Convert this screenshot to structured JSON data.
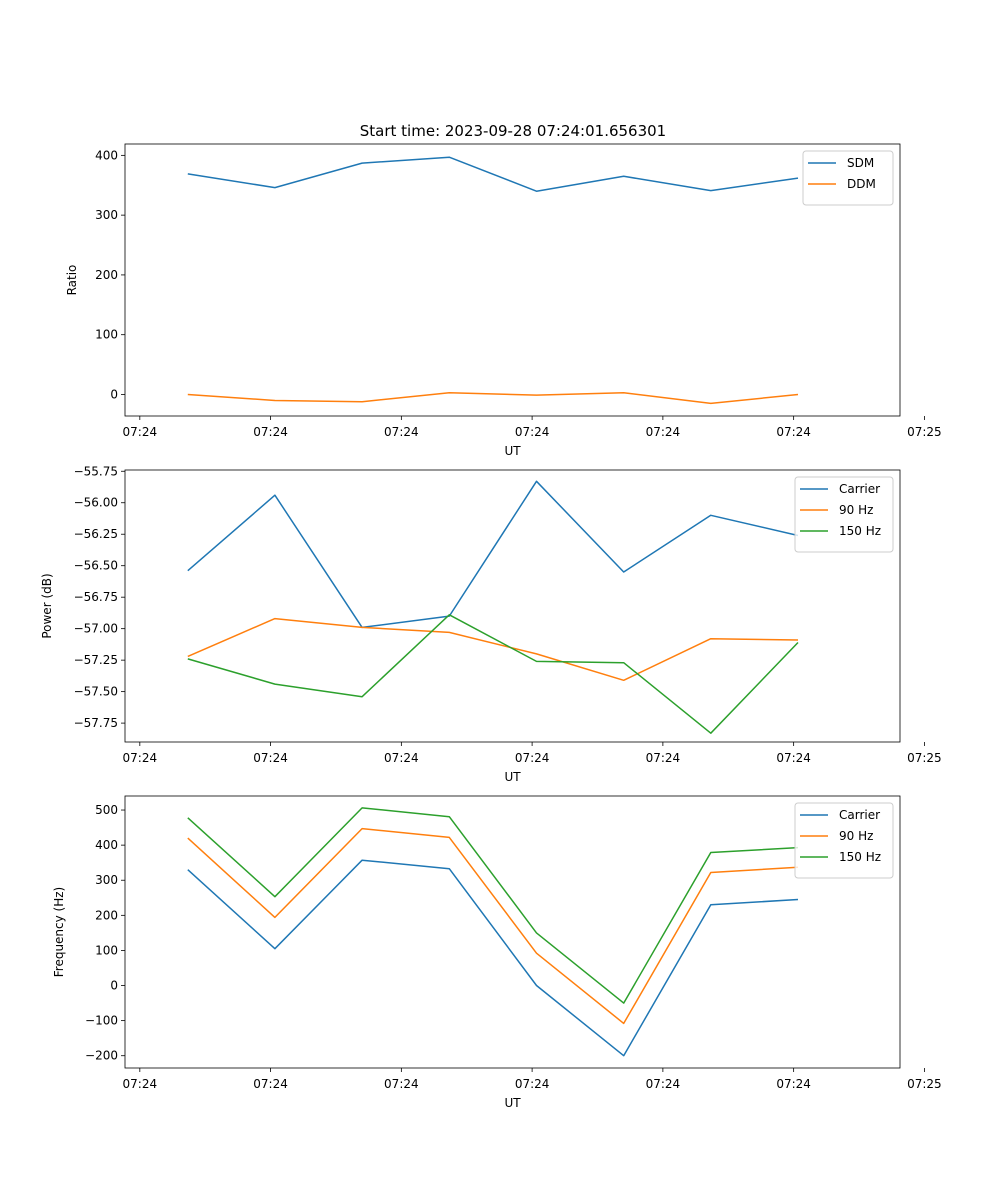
{
  "figure_title": "Start time: 2023-09-28 07:24:01.656301",
  "colors": {
    "blue": "#1f77b4",
    "orange": "#ff7f0e",
    "green": "#2ca02c"
  },
  "chart_data": [
    {
      "type": "line",
      "title": "Start time: 2023-09-28 07:24:01.656301",
      "xlabel": "UT",
      "ylabel": "Ratio",
      "x": [
        1,
        2,
        3,
        4,
        5,
        6,
        7,
        8
      ],
      "xlim": [
        0.28,
        9.17
      ],
      "x_ticks": [
        0.45,
        1.95,
        3.45,
        4.95,
        6.45,
        7.95,
        9.45
      ],
      "x_tick_labels": [
        "07:24",
        "07:24",
        "07:24",
        "07:24",
        "07:24",
        "07:24",
        "07:25"
      ],
      "ylim": [
        -36,
        419
      ],
      "y_ticks": [
        0,
        100,
        200,
        300,
        400
      ],
      "y_tick_labels": [
        "0",
        "100",
        "200",
        "300",
        "400"
      ],
      "legend": "upper right",
      "series": [
        {
          "name": "SDM",
          "color": "#1f77b4",
          "values": [
            369,
            346,
            387,
            397,
            340,
            365,
            341,
            362
          ]
        },
        {
          "name": "DDM",
          "color": "#ff7f0e",
          "values": [
            0,
            -10,
            -12,
            3,
            -1,
            3,
            -15,
            0
          ]
        }
      ]
    },
    {
      "type": "line",
      "xlabel": "UT",
      "ylabel": "Power (dB)",
      "x": [
        1,
        2,
        3,
        4,
        5,
        6,
        7,
        8
      ],
      "xlim": [
        0.28,
        9.17
      ],
      "x_ticks": [
        0.45,
        1.95,
        3.45,
        4.95,
        6.45,
        7.95,
        9.45
      ],
      "x_tick_labels": [
        "07:24",
        "07:24",
        "07:24",
        "07:24",
        "07:24",
        "07:24",
        "07:25"
      ],
      "ylim": [
        -57.9,
        -55.74
      ],
      "y_ticks": [
        -55.75,
        -56.0,
        -56.25,
        -56.5,
        -56.75,
        -57.0,
        -57.25,
        -57.5,
        -57.75
      ],
      "y_tick_labels": [
        "−55.75",
        "−56.00",
        "−56.25",
        "−56.50",
        "−56.75",
        "−57.00",
        "−57.25",
        "−57.50",
        "−57.75"
      ],
      "legend": "upper right",
      "series": [
        {
          "name": "Carrier",
          "color": "#1f77b4",
          "values": [
            -56.54,
            -55.94,
            -56.99,
            -56.9,
            -55.83,
            -56.55,
            -56.1,
            -56.26
          ]
        },
        {
          "name": "90 Hz",
          "color": "#ff7f0e",
          "values": [
            -57.22,
            -56.92,
            -56.99,
            -57.03,
            -57.2,
            -57.41,
            -57.08,
            -57.09
          ]
        },
        {
          "name": "150 Hz",
          "color": "#2ca02c",
          "values": [
            -57.24,
            -57.44,
            -57.54,
            -56.89,
            -57.26,
            -57.27,
            -57.83,
            -57.11
          ]
        }
      ]
    },
    {
      "type": "line",
      "xlabel": "UT",
      "ylabel": "Frequency (Hz)",
      "x": [
        1,
        2,
        3,
        4,
        5,
        6,
        7,
        8
      ],
      "xlim": [
        0.28,
        9.17
      ],
      "x_ticks": [
        0.45,
        1.95,
        3.45,
        4.95,
        6.45,
        7.95,
        9.45
      ],
      "x_tick_labels": [
        "07:24",
        "07:24",
        "07:24",
        "07:24",
        "07:24",
        "07:24",
        "07:25"
      ],
      "ylim": [
        -235,
        540
      ],
      "y_ticks": [
        -200,
        -100,
        0,
        100,
        200,
        300,
        400,
        500
      ],
      "y_tick_labels": [
        "−200",
        "−100",
        "0",
        "100",
        "200",
        "300",
        "400",
        "500"
      ],
      "legend": "upper right",
      "series": [
        {
          "name": "Carrier",
          "color": "#1f77b4",
          "values": [
            330,
            105,
            357,
            333,
            0,
            -200,
            230,
            245
          ]
        },
        {
          "name": "90 Hz",
          "color": "#ff7f0e",
          "values": [
            420,
            194,
            447,
            422,
            92,
            -108,
            322,
            337
          ]
        },
        {
          "name": "150 Hz",
          "color": "#2ca02c",
          "values": [
            478,
            253,
            506,
            481,
            150,
            -50,
            379,
            393
          ]
        }
      ]
    }
  ]
}
